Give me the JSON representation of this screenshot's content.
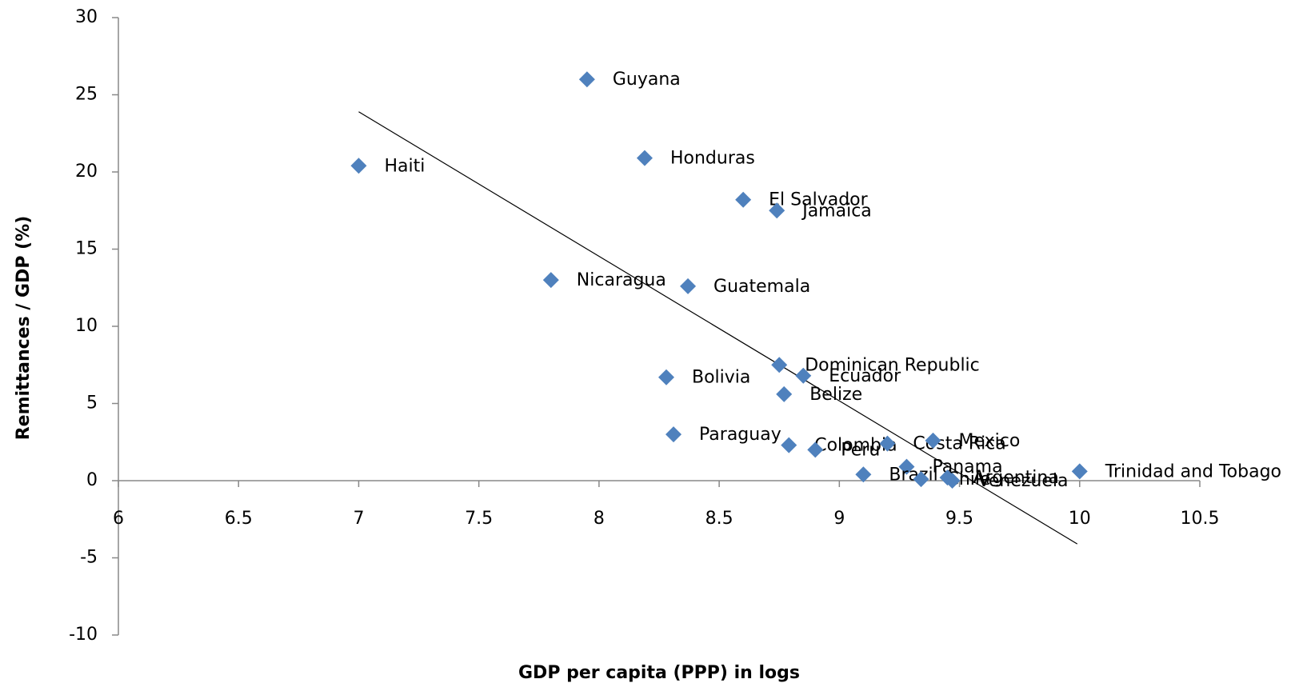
{
  "chart_data": {
    "type": "scatter",
    "x_label": "GDP per capita (PPP) in logs",
    "y_label": "Remittances / GDP (%)",
    "labels": [
      "Guyana",
      "Haiti",
      "Honduras",
      "El Salvador",
      "Jamaica",
      "Nicaragua",
      "Guatemala",
      "Dominican Republic",
      "Ecuador",
      "Bolivia",
      "Belize",
      "Paraguay",
      "Colombia",
      "Peru",
      "Costa Rica",
      "Mexico",
      "Panama",
      "Brazil",
      "Chile",
      "Argentina",
      "Venezuela",
      "Trinidad and Tobago"
    ],
    "x": [
      7.95,
      7.0,
      8.19,
      8.6,
      8.74,
      7.8,
      8.37,
      8.75,
      8.85,
      8.28,
      8.77,
      8.31,
      8.79,
      8.9,
      9.2,
      9.39,
      9.28,
      9.1,
      9.34,
      9.45,
      9.47,
      10.0
    ],
    "values": [
      26.0,
      20.4,
      20.9,
      18.2,
      17.5,
      13.0,
      12.6,
      7.5,
      6.8,
      6.7,
      5.6,
      3.0,
      2.3,
      2.0,
      2.4,
      2.6,
      0.9,
      0.4,
      0.1,
      0.2,
      0.0,
      0.6
    ],
    "color": "#4f81bd",
    "trendline": {
      "x": [
        7.0,
        9.99
      ],
      "y": [
        23.9,
        -4.1
      ]
    },
    "xlim": [
      6,
      10.5
    ],
    "xticks": [
      6,
      6.5,
      7,
      7.5,
      8,
      8.5,
      9,
      9.5,
      10,
      10.5
    ],
    "ylim": [
      -10,
      30
    ],
    "yticks": [
      -10,
      -5,
      0,
      5,
      10,
      15,
      20,
      25,
      30
    ]
  }
}
